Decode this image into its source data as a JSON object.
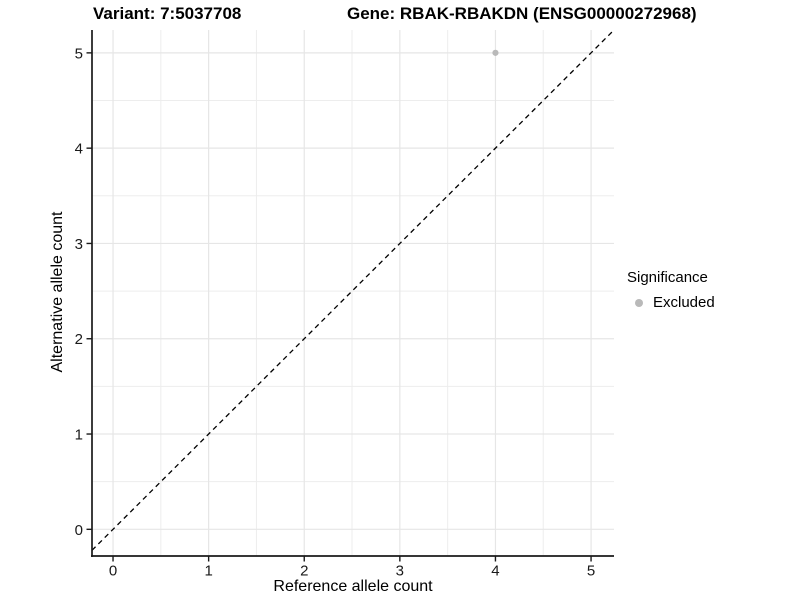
{
  "chart_data": {
    "type": "scatter",
    "titles": {
      "left": "Variant: 7:5037708",
      "right": "Gene: RBAK-RBAKDN (ENSG00000272968)"
    },
    "xlabel": "Reference allele count",
    "ylabel": "Alternative allele count",
    "x_ticks": [
      0,
      1,
      2,
      3,
      4,
      5
    ],
    "y_ticks": [
      0,
      1,
      2,
      3,
      4,
      5
    ],
    "xlim": [
      -0.22,
      5.24
    ],
    "ylim": [
      -0.28,
      5.24
    ],
    "minor_grid_step": 0.5,
    "grid": "on",
    "colors": {
      "point": "#b9b9b9",
      "grid_major": "#e6e6e6",
      "grid_minor": "#ededed",
      "axis": "#1a1a1a",
      "reference_line": "#000000"
    },
    "series": [
      {
        "name": "Excluded",
        "color": "#b9b9b9",
        "points": [
          {
            "x": 4,
            "y": 5
          }
        ]
      }
    ],
    "reference_line": {
      "type": "identity",
      "slope": 1,
      "intercept": 0,
      "linestyle": "dashed",
      "color": "#000000"
    },
    "legend": {
      "title": "Significance",
      "position": "right",
      "items": [
        {
          "label": "Excluded",
          "color": "#b9b9b9",
          "marker": "circle"
        }
      ]
    }
  }
}
